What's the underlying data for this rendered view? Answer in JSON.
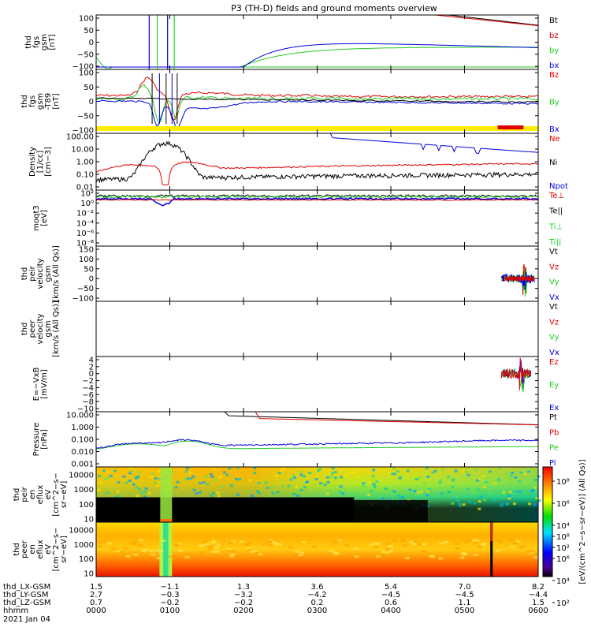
{
  "title": "P3 (TH-D) fields and ground moments overview",
  "colors": {
    "black": "#000000",
    "red": "#e00000",
    "green": "#22cc22",
    "blue": "#0000dd",
    "yellow": "#ffee00"
  },
  "chart_data": [
    {
      "id": "fgs",
      "type": "line",
      "ylabel": [
        "thd",
        "fgs",
        "gsm",
        "[nT]"
      ],
      "ylim": [
        -100,
        100
      ],
      "yticks": [
        "100",
        "50",
        "0",
        "−50",
        "−100"
      ],
      "legend": [
        {
          "name": "Bt",
          "color": "black"
        },
        {
          "name": "bz",
          "color": "red"
        },
        {
          "name": "by",
          "color": "green"
        },
        {
          "name": "bx",
          "color": "blue"
        }
      ]
    },
    {
      "id": "fgs_t89",
      "type": "line",
      "ylabel": [
        "thd",
        "fgs",
        "gsm",
        "-T89",
        "[nT]"
      ],
      "ylim": [
        -125,
        110
      ],
      "yticks": [
        "100",
        "50",
        "0",
        "−50",
        "−100"
      ],
      "legend": [
        {
          "name": "Bz",
          "color": "red"
        },
        {
          "name": "By",
          "color": "green"
        },
        {
          "name": "Bx",
          "color": "blue"
        }
      ]
    },
    {
      "id": "density",
      "type": "line",
      "ylabel": [
        "Density",
        "[1/cc]",
        "[cm−3]"
      ],
      "yscale": "log",
      "yticks": [
        "100.00",
        "10.00",
        "1.00",
        "0.10",
        "0.01"
      ],
      "legend": [
        {
          "name": "Ne",
          "color": "red"
        },
        {
          "name": "Ni",
          "color": "black"
        },
        {
          "name": "Npot",
          "color": "blue"
        }
      ]
    },
    {
      "id": "temperature",
      "type": "line",
      "ylabel": [
        "moqt3",
        "[eV]"
      ],
      "yscale": "log",
      "yticks": [
        "10²",
        "10⁰",
        "10⁻²",
        "10⁻⁴",
        "10⁻⁶",
        "10⁻⁸"
      ],
      "legend": [
        {
          "name": "Te⊥",
          "color": "red"
        },
        {
          "name": "Te||",
          "color": "black"
        },
        {
          "name": "Ti⊥",
          "color": "green"
        },
        {
          "name": "Ti||",
          "color": "green"
        }
      ]
    },
    {
      "id": "peir_vel",
      "type": "line",
      "ylabel": [
        "thd",
        "peir",
        "velocity",
        "gsm",
        "[km/s (All Qs)]"
      ],
      "ylim": [
        -100,
        150
      ],
      "yticks": [
        "150",
        "100",
        "50",
        "0",
        "−50",
        "−100"
      ],
      "legend": [
        {
          "name": "Vt",
          "color": "black"
        },
        {
          "name": "Vz",
          "color": "red"
        },
        {
          "name": "Vy",
          "color": "green"
        },
        {
          "name": "Vx",
          "color": "blue"
        }
      ]
    },
    {
      "id": "peer_vel",
      "type": "line",
      "ylabel": [
        "thd",
        "peer",
        "velocity",
        "gsm",
        "[km/s (All Qs)]"
      ],
      "yticks": [],
      "legend": [
        {
          "name": "Vt",
          "color": "black"
        },
        {
          "name": "Vz",
          "color": "red"
        },
        {
          "name": "Vy",
          "color": "green"
        },
        {
          "name": "Vx",
          "color": "blue"
        }
      ]
    },
    {
      "id": "efield",
      "type": "line",
      "ylabel": [
        "E=−VxB",
        "[mV/m]"
      ],
      "ylim": [
        -10,
        4
      ],
      "yticks": [
        "4",
        "2",
        "0",
        "−2",
        "−4",
        "−6",
        "−8",
        "−10"
      ],
      "legend": [
        {
          "name": "Ez",
          "color": "red"
        },
        {
          "name": "Ey",
          "color": "green"
        },
        {
          "name": "Ex",
          "color": "blue"
        }
      ]
    },
    {
      "id": "pressure",
      "type": "line",
      "ylabel": [
        "Pressure",
        "[nPa]"
      ],
      "yscale": "log",
      "yticks": [
        "10.000",
        "1.000",
        "0.100",
        "0.010",
        "0.001"
      ],
      "legend": [
        {
          "name": "Pt",
          "color": "black"
        },
        {
          "name": "Pb",
          "color": "red"
        },
        {
          "name": "Pe",
          "color": "green"
        },
        {
          "name": "Pi",
          "color": "blue"
        }
      ]
    },
    {
      "id": "peir_spec",
      "type": "heatmap",
      "ylabel": [
        "thd",
        "peir",
        "en",
        "eflux",
        "eV",
        "[cm^2−s−",
        "sr−eV]"
      ],
      "yticks": [
        "10000",
        "1000",
        "100",
        "10"
      ]
    },
    {
      "id": "peer_spec",
      "type": "heatmap",
      "ylabel": [
        "thd",
        "peer",
        "en",
        "eflux",
        "eV",
        "[cm^2−s−",
        "sr−eV]"
      ],
      "yticks": [
        "10000",
        "1000",
        "100",
        "10"
      ]
    }
  ],
  "colorbar": {
    "ticks": [
      "10⁸",
      "10⁶",
      "10⁴",
      "10²"
    ],
    "label": "[eV/(cm^2−s−sr−eV)] (All Qs)]"
  },
  "xaxis": {
    "rows": [
      {
        "label": "thd_LX-GSM",
        "values": [
          "1.5",
          "−1.1",
          "1.3",
          "3.6",
          "5.4",
          "7.0",
          "8.2"
        ]
      },
      {
        "label": "thd_LY-GSM",
        "values": [
          "2.7",
          "−0.3",
          "−3.2",
          "−4.2",
          "−4.5",
          "−4.5",
          "−4.4"
        ]
      },
      {
        "label": "thd_LZ-GSM",
        "values": [
          "0.7",
          "−0.2",
          "−0.2",
          "0.2",
          "0.6",
          "1.1",
          "1.5"
        ]
      },
      {
        "label": "hhmm",
        "values": [
          "0000",
          "0100",
          "0200",
          "0300",
          "0400",
          "0500",
          "0600"
        ]
      }
    ],
    "date": "2021 Jan 04"
  }
}
